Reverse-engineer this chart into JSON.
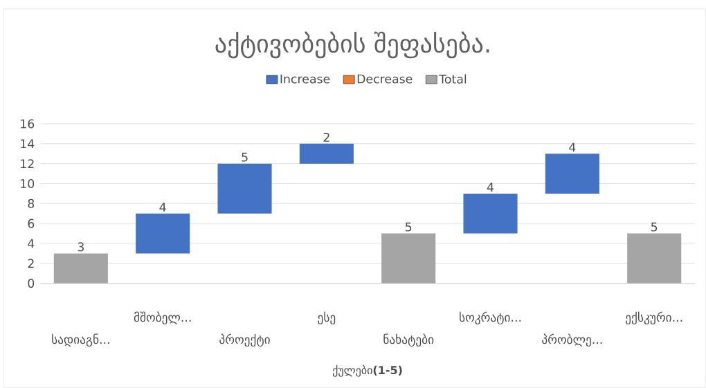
{
  "chart_data": {
    "type": "bar",
    "title": "აქტივობების შეფასება.",
    "xlabel": "ქულები**(1-5)**",
    "categories": [
      "სადიაგნ...",
      "მშობელ...",
      "პროექტი",
      "ესე",
      "ნახატები",
      "სოკრატი...",
      "პრობლე...",
      "ექსკური..."
    ],
    "series": [
      {
        "name": "Increase",
        "color": "#4472c4",
        "values": [
          null,
          4,
          5,
          2,
          null,
          4,
          4,
          null
        ],
        "base": [
          null,
          3,
          7,
          12,
          null,
          5,
          9,
          null
        ]
      },
      {
        "name": "Decrease",
        "color": "#ed7d31",
        "values": [
          null,
          null,
          null,
          null,
          null,
          null,
          null,
          null
        ],
        "base": [
          null,
          null,
          null,
          null,
          null,
          null,
          null,
          null
        ]
      },
      {
        "name": "Total",
        "color": "#a5a5a5",
        "values": [
          3,
          null,
          null,
          null,
          5,
          null,
          null,
          5
        ],
        "base": [
          0,
          null,
          null,
          null,
          0,
          null,
          null,
          0
        ]
      }
    ],
    "ylim": [
      0,
      16
    ],
    "yticks": [
      0,
      2,
      4,
      6,
      8,
      10,
      12,
      14,
      16
    ],
    "grid": "y",
    "legend": "top",
    "data_labels": true
  }
}
